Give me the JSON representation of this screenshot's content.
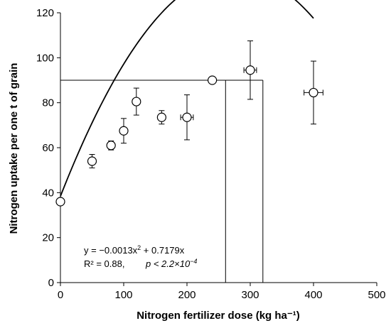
{
  "chart_data": {
    "type": "scatter",
    "xlabel": "Nitrogen fertilizer dose (kg ha⁻¹)",
    "ylabel": "Nitrogen uptake per one t of grain",
    "xlim": [
      0,
      500
    ],
    "ylim": [
      0,
      120
    ],
    "x_ticks": [
      0,
      100,
      200,
      300,
      400,
      500
    ],
    "y_ticks": [
      0,
      20,
      40,
      60,
      80,
      100,
      120
    ],
    "grid": false,
    "points": [
      {
        "x": 0,
        "y": 36,
        "y_err_low": 0,
        "y_err_high": 0,
        "x_err": 0
      },
      {
        "x": 50,
        "y": 54,
        "y_err_low": 3,
        "y_err_high": 3,
        "x_err": 0
      },
      {
        "x": 80,
        "y": 61,
        "y_err_low": 2,
        "y_err_high": 2,
        "x_err": 0
      },
      {
        "x": 100,
        "y": 67.5,
        "y_err_low": 5.5,
        "y_err_high": 5.5,
        "x_err": 0
      },
      {
        "x": 120,
        "y": 80.5,
        "y_err_low": 6,
        "y_err_high": 6,
        "x_err": 0
      },
      {
        "x": 160,
        "y": 73.5,
        "y_err_low": 3,
        "y_err_high": 3,
        "x_err": 5
      },
      {
        "x": 200,
        "y": 73.5,
        "y_err_low": 10,
        "y_err_high": 10,
        "x_err": 10
      },
      {
        "x": 240,
        "y": 90,
        "y_err_low": 0,
        "y_err_high": 0,
        "x_err": 0
      },
      {
        "x": 300,
        "y": 94.5,
        "y_err_low": 13,
        "y_err_high": 13,
        "x_err": 10
      },
      {
        "x": 400,
        "y": 84.5,
        "y_err_low": 14,
        "y_err_high": 14,
        "x_err": 15
      }
    ],
    "fit": {
      "a": -0.0013,
      "b": 0.7179,
      "c": 38.4,
      "x_range": [
        0,
        400
      ]
    },
    "reference_lines": {
      "horizontal_y": 90,
      "horizontal_x_range": [
        0,
        320
      ],
      "vertical_x": [
        261,
        320
      ]
    },
    "annotation": {
      "equation_prefix": "y = −0.0013x",
      "equation_sup": "2",
      "equation_suffix": " + 0.7179x",
      "r2": "R² = 0.88,",
      "pvalue": "p < 2.2×10",
      "pvalue_sup": "−4"
    }
  }
}
